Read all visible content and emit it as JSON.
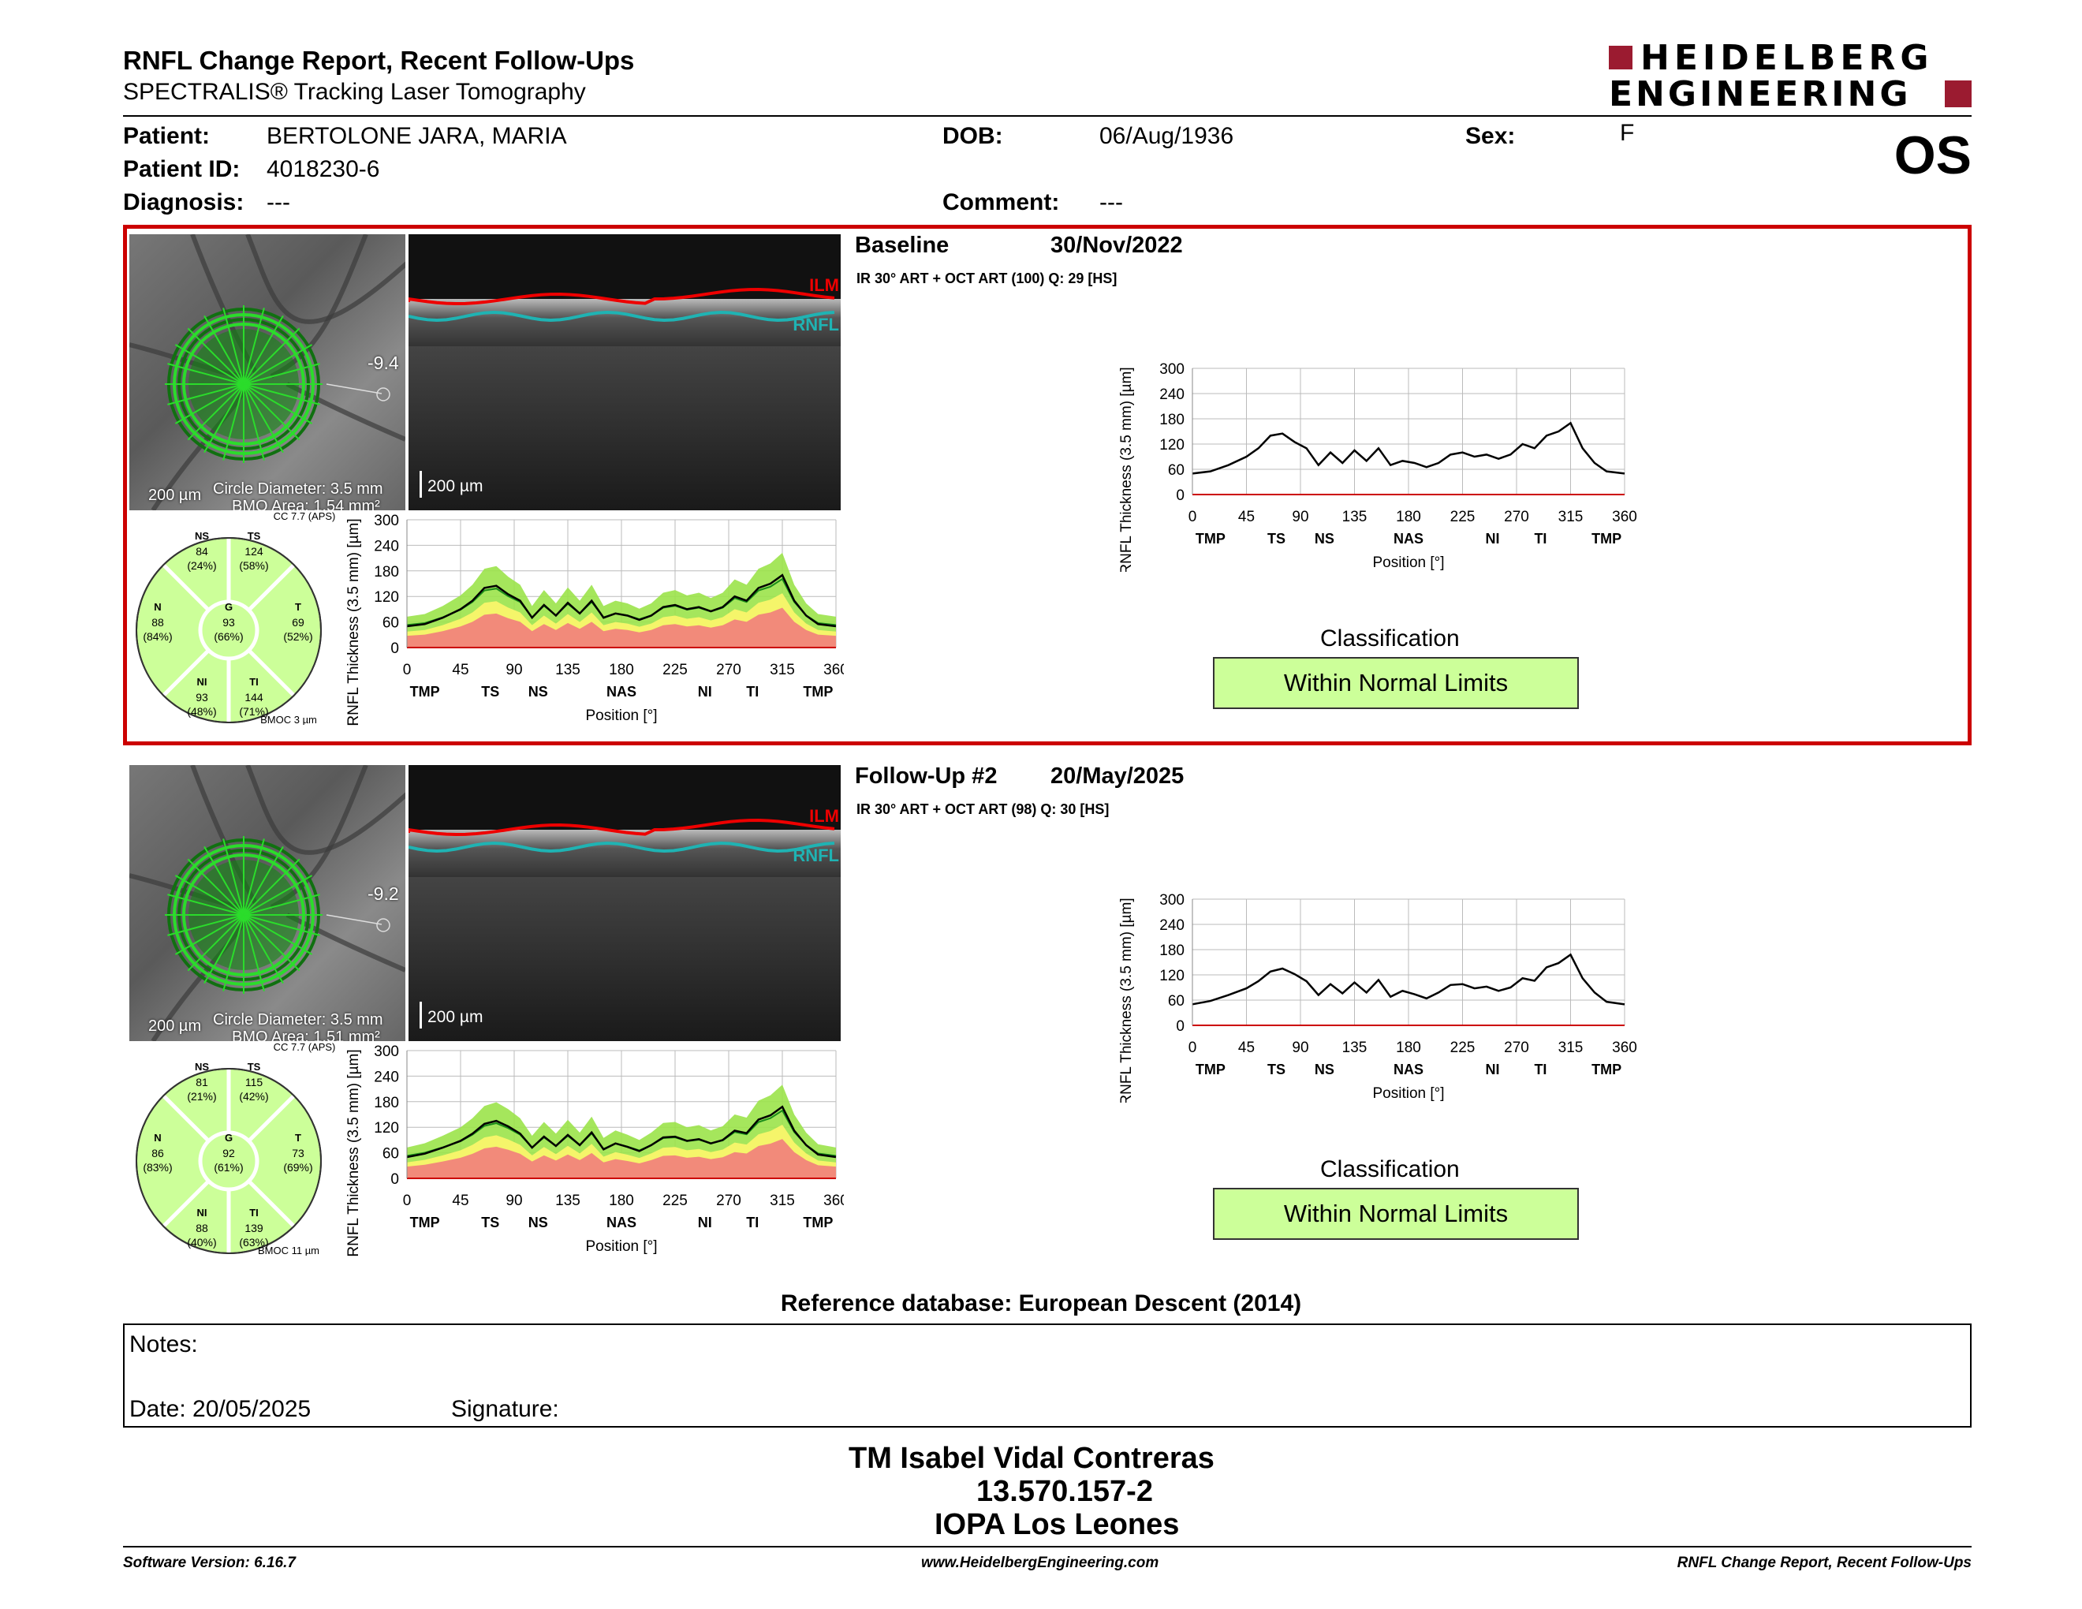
{
  "header": {
    "title": "RNFL Change Report, Recent Follow-Ups",
    "subtitle": "SPECTRALIS® Tracking Laser Tomography",
    "brand_line1": "HEIDELBERG",
    "brand_line2": "ENGINEERING",
    "brand_color": "#9b1b30"
  },
  "patient": {
    "patient_label": "Patient:",
    "patient_value": "BERTOLONE JARA, MARIA",
    "id_label": "Patient ID:",
    "id_value": "4018230-6",
    "diagnosis_label": "Diagnosis:",
    "diagnosis_value": "---",
    "dob_label": "DOB:",
    "dob_value": "06/Aug/1936",
    "comment_label": "Comment:",
    "comment_value": "---",
    "sex_label": "Sex:",
    "sex_value": "F",
    "eye": "OS"
  },
  "exams": [
    {
      "label": "Baseline",
      "date": "30/Nov/2022",
      "acq": "IR 30° ART + OCT ART (100) Q: 29 [HS]",
      "fundus_value": "-9.4",
      "fundus_scale": "200 µm",
      "circle_diameter": "Circle Diameter: 3.5 mm",
      "bmo_area": "BMO Area: 1.54 mm²",
      "bscan_scale": "200 µm",
      "ilm": "ILM",
      "rnfl": "RNFL",
      "cc": "CC 7.7 (APS)",
      "bmoc": "BMOC 3 µm",
      "sectors": {
        "NS": {
          "v": "84",
          "p": "(24%)"
        },
        "TS": {
          "v": "124",
          "p": "(58%)"
        },
        "N": {
          "v": "88",
          "p": "(84%)"
        },
        "G": {
          "v": "93",
          "p": "(66%)"
        },
        "T": {
          "v": "69",
          "p": "(52%)"
        },
        "NI": {
          "v": "93",
          "p": "(48%)"
        },
        "TI": {
          "v": "144",
          "p": "(71%)"
        }
      },
      "classification_label": "Classification",
      "classification_value": "Within Normal Limits"
    },
    {
      "label": "Follow-Up #2",
      "date": "20/May/2025",
      "acq": "IR 30° ART + OCT ART (98) Q: 30 [HS]",
      "fundus_value": "-9.2",
      "fundus_scale": "200 µm",
      "circle_diameter": "Circle Diameter: 3.5 mm",
      "bmo_area": "BMO Area: 1.51 mm²",
      "bscan_scale": "200 µm",
      "ilm": "ILM",
      "rnfl": "RNFL",
      "cc": "CC 7.7 (APS)",
      "bmoc": "BMOC 11 µm",
      "sectors": {
        "NS": {
          "v": "81",
          "p": "(21%)"
        },
        "TS": {
          "v": "115",
          "p": "(42%)"
        },
        "N": {
          "v": "86",
          "p": "(83%)"
        },
        "G": {
          "v": "92",
          "p": "(61%)"
        },
        "T": {
          "v": "73",
          "p": "(69%)"
        },
        "NI": {
          "v": "88",
          "p": "(40%)"
        },
        "TI": {
          "v": "139",
          "p": "(63%)"
        }
      },
      "classification_label": "Classification",
      "classification_value": "Within Normal Limits"
    }
  ],
  "chart_data": [
    {
      "type": "line",
      "exam": "Baseline",
      "ylabel": "RNFL Thickness (3.5 mm) [µm]",
      "xlabel": "Position [°]",
      "ylim": [
        0,
        300
      ],
      "xlim": [
        0,
        360
      ],
      "yticks": [
        0,
        60,
        120,
        180,
        240,
        300
      ],
      "xticks": [
        0,
        45,
        90,
        135,
        180,
        225,
        270,
        315,
        360
      ],
      "sector_labels": [
        "TMP",
        "TS",
        "NS",
        "NAS",
        "NI",
        "TI",
        "TMP"
      ],
      "sector_positions": [
        15,
        70,
        110,
        180,
        250,
        290,
        345
      ],
      "x": [
        0,
        15,
        30,
        45,
        55,
        65,
        75,
        85,
        95,
        105,
        115,
        125,
        135,
        145,
        155,
        165,
        175,
        185,
        195,
        205,
        215,
        225,
        235,
        245,
        255,
        265,
        275,
        285,
        295,
        305,
        315,
        325,
        335,
        345,
        360
      ],
      "y": [
        50,
        55,
        70,
        90,
        110,
        140,
        145,
        125,
        110,
        70,
        100,
        75,
        105,
        80,
        110,
        70,
        80,
        75,
        65,
        75,
        95,
        100,
        90,
        95,
        85,
        95,
        120,
        110,
        140,
        150,
        170,
        110,
        75,
        55,
        50
      ]
    },
    {
      "type": "line",
      "exam": "Follow-Up #2",
      "ylabel": "RNFL Thickness (3.5 mm) [µm]",
      "xlabel": "Position [°]",
      "ylim": [
        0,
        300
      ],
      "xlim": [
        0,
        360
      ],
      "yticks": [
        0,
        60,
        120,
        180,
        240,
        300
      ],
      "xticks": [
        0,
        45,
        90,
        135,
        180,
        225,
        270,
        315,
        360
      ],
      "sector_labels": [
        "TMP",
        "TS",
        "NS",
        "NAS",
        "NI",
        "TI",
        "TMP"
      ],
      "sector_positions": [
        15,
        70,
        110,
        180,
        250,
        290,
        345
      ],
      "x": [
        0,
        15,
        30,
        45,
        55,
        65,
        75,
        85,
        95,
        105,
        115,
        125,
        135,
        145,
        155,
        165,
        175,
        185,
        195,
        205,
        215,
        225,
        235,
        245,
        255,
        265,
        275,
        285,
        295,
        305,
        315,
        325,
        335,
        345,
        360
      ],
      "y": [
        50,
        58,
        72,
        88,
        105,
        128,
        135,
        122,
        105,
        72,
        98,
        76,
        102,
        78,
        108,
        68,
        82,
        74,
        64,
        78,
        96,
        98,
        88,
        92,
        82,
        90,
        112,
        106,
        138,
        148,
        168,
        112,
        78,
        56,
        50
      ]
    }
  ],
  "footer": {
    "reference_db": "Reference database: European Descent (2014)",
    "notes_label": "Notes:",
    "date_label": "Date: 20/05/2025",
    "signature_label": "Signature:",
    "sign_name": "TM Isabel Vidal Contreras",
    "sign_id": "13.570.157-2",
    "sign_org": "IOPA Los Leones",
    "software": "Software Version: 6.16.7",
    "website": "www.HeidelbergEngineering.com",
    "report_name": "RNFL Change Report, Recent Follow-Ups"
  }
}
